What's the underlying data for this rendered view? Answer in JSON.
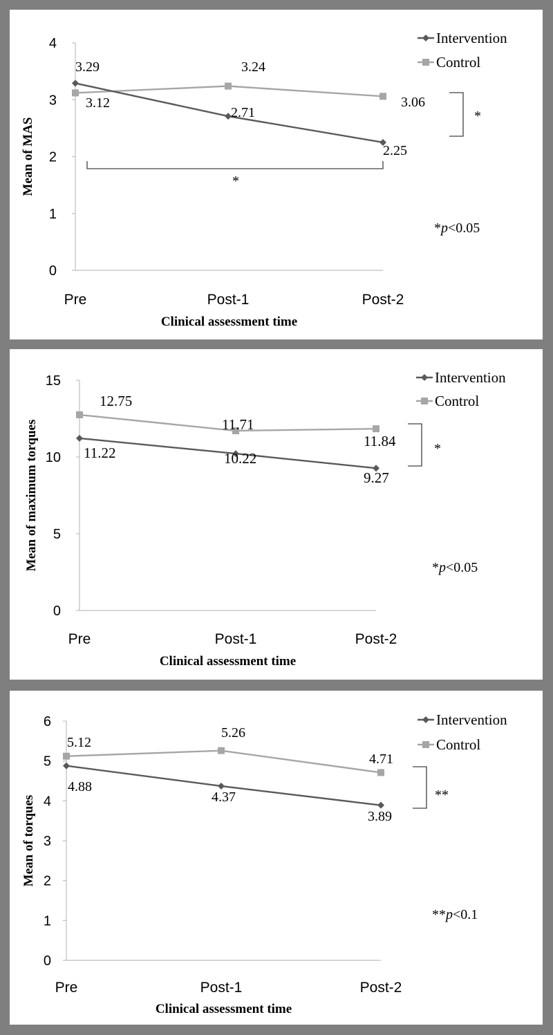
{
  "chart_data": [
    {
      "type": "line",
      "categories": [
        "Pre",
        "Post-1",
        "Post-2"
      ],
      "series": [
        {
          "name": "Intervention",
          "values": [
            3.29,
            2.71,
            2.25
          ],
          "labels": [
            "3.29",
            "2.71",
            "2.25"
          ],
          "color": "#595959"
        },
        {
          "name": "Control",
          "values": [
            3.12,
            3.24,
            3.06
          ],
          "labels": [
            "3.12",
            "3.24",
            "3.06"
          ],
          "color": "#a6a6a6"
        }
      ],
      "xlabel": "Clinical assessment time",
      "ylabel": "Mean of MAS",
      "ylim": [
        0,
        4
      ],
      "yticks": [
        "0",
        "1",
        "2",
        "3",
        "4"
      ],
      "annotations": {
        "end_bracket": "*",
        "pre_post_bracket": "*",
        "pvalue_star": "*",
        "pvalue_p": "p",
        "pvalue_rest": "<0.05"
      }
    },
    {
      "type": "line",
      "categories": [
        "Pre",
        "Post-1",
        "Post-2"
      ],
      "series": [
        {
          "name": "Intervention",
          "values": [
            11.22,
            10.22,
            9.27
          ],
          "labels": [
            "11.22",
            "10.22",
            "9.27"
          ],
          "color": "#595959"
        },
        {
          "name": "Control",
          "values": [
            12.75,
            11.71,
            11.84
          ],
          "labels": [
            "12.75",
            "11.71",
            "11.84"
          ],
          "color": "#a6a6a6"
        }
      ],
      "xlabel": "Clinical assessment time",
      "ylabel": "Mean of maximum torques",
      "ylim": [
        0,
        15
      ],
      "yticks": [
        "0",
        "5",
        "10",
        "15"
      ],
      "annotations": {
        "end_bracket": "*",
        "pvalue_star": "*",
        "pvalue_p": "p",
        "pvalue_rest": "<0.05"
      }
    },
    {
      "type": "line",
      "categories": [
        "Pre",
        "Post-1",
        "Post-2"
      ],
      "series": [
        {
          "name": "Intervention",
          "values": [
            4.88,
            4.37,
            3.89
          ],
          "labels": [
            "4.88",
            "4.37",
            "3.89"
          ],
          "color": "#595959"
        },
        {
          "name": "Control",
          "values": [
            5.12,
            5.26,
            4.71
          ],
          "labels": [
            "5.12",
            "5.26",
            "4.71"
          ],
          "color": "#a6a6a6"
        }
      ],
      "xlabel": "Clinical assessment time",
      "ylabel": "Mean of torques",
      "ylim": [
        0,
        6
      ],
      "yticks": [
        "0",
        "1",
        "2",
        "3",
        "4",
        "5",
        "6"
      ],
      "annotations": {
        "end_bracket": "**",
        "pvalue_star": "**",
        "pvalue_p": "p",
        "pvalue_rest": "<0.1"
      }
    }
  ]
}
